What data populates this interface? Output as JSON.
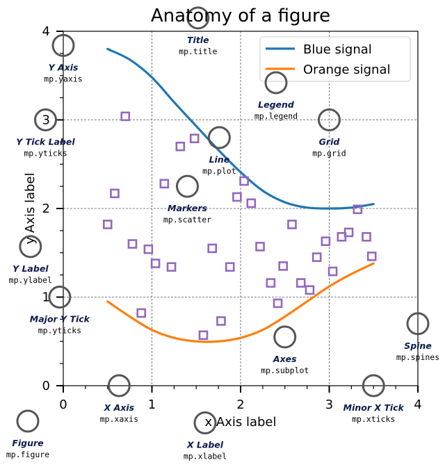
{
  "chart_data": {
    "type": "line",
    "title": "Anatomy of a figure",
    "xlabel": "x Axis label",
    "ylabel": "y Axis label",
    "xlim": [
      0,
      4
    ],
    "ylim": [
      0,
      4
    ],
    "x_major_ticks": [
      0,
      1,
      2,
      3,
      4
    ],
    "y_major_ticks": [
      0,
      1,
      2,
      3,
      4
    ],
    "x_minor_step": 0.25,
    "y_minor_step": 0.25,
    "grid": true,
    "legend_position": "top-right",
    "series": [
      {
        "name": "Blue signal",
        "type": "line",
        "color": "#1f77b4",
        "x": [
          0.5,
          0.75,
          1.0,
          1.25,
          1.5,
          1.75,
          2.0,
          2.25,
          2.5,
          2.75,
          3.0,
          3.25,
          3.5
        ],
        "y": [
          3.8,
          3.68,
          3.48,
          3.2,
          2.93,
          2.66,
          2.41,
          2.2,
          2.07,
          2.01,
          2.0,
          2.01,
          2.05
        ]
      },
      {
        "name": "Orange signal",
        "type": "line",
        "color": "#ff7f0e",
        "x": [
          0.5,
          0.75,
          1.0,
          1.25,
          1.5,
          1.75,
          2.0,
          2.25,
          2.5,
          2.75,
          3.0,
          3.25,
          3.5
        ],
        "y": [
          0.95,
          0.78,
          0.63,
          0.54,
          0.5,
          0.5,
          0.54,
          0.63,
          0.78,
          0.95,
          1.12,
          1.26,
          1.38
        ]
      },
      {
        "name": "markers",
        "type": "scatter",
        "color": "#9467bd",
        "points": [
          [
            0.7,
            3.04
          ],
          [
            0.5,
            1.82
          ],
          [
            0.58,
            2.17
          ],
          [
            0.78,
            1.6
          ],
          [
            0.88,
            0.82
          ],
          [
            0.96,
            1.54
          ],
          [
            1.04,
            1.38
          ],
          [
            1.14,
            2.28
          ],
          [
            1.22,
            1.34
          ],
          [
            1.32,
            2.7
          ],
          [
            1.48,
            2.79
          ],
          [
            1.58,
            0.57
          ],
          [
            1.68,
            1.55
          ],
          [
            1.78,
            0.73
          ],
          [
            1.88,
            1.34
          ],
          [
            1.96,
            2.13
          ],
          [
            2.04,
            2.31
          ],
          [
            2.12,
            2.06
          ],
          [
            2.22,
            1.57
          ],
          [
            2.34,
            1.16
          ],
          [
            2.42,
            0.93
          ],
          [
            2.48,
            1.35
          ],
          [
            2.58,
            1.82
          ],
          [
            2.68,
            1.16
          ],
          [
            2.78,
            1.08
          ],
          [
            2.86,
            1.45
          ],
          [
            2.96,
            1.63
          ],
          [
            3.04,
            1.29
          ],
          [
            3.14,
            1.68
          ],
          [
            3.22,
            1.73
          ],
          [
            3.32,
            1.99
          ],
          [
            3.42,
            1.68
          ],
          [
            3.48,
            1.46
          ]
        ]
      }
    ],
    "annotations": [
      {
        "label": "Title",
        "code": "mp.title",
        "x": 1.52,
        "y": 4.15
      },
      {
        "label": "Legend",
        "code": "mp.legend",
        "x": 2.4,
        "y": 3.42
      },
      {
        "label": "Y Axis",
        "code": "mp.yaxis",
        "x": 0.0,
        "y": 3.84
      },
      {
        "label": "Y Tick Label",
        "code": "mp.yticks",
        "x": -0.2,
        "y": 3.0
      },
      {
        "label": "Grid",
        "code": "mp.grid",
        "x": 3.0,
        "y": 3.0
      },
      {
        "label": "Line",
        "code": "mp.plot",
        "x": 1.76,
        "y": 2.8
      },
      {
        "label": "Markers",
        "code": "mp.scatter",
        "x": 1.4,
        "y": 2.25
      },
      {
        "label": "Y Label",
        "code": "mp.ylabel",
        "x": -0.37,
        "y": 1.57
      },
      {
        "label": "Major Y Tick",
        "code": "mp.yticks",
        "x": -0.04,
        "y": 1.0
      },
      {
        "label": "Axes",
        "code": "mp.subplot",
        "x": 2.5,
        "y": 0.55
      },
      {
        "label": "Spine",
        "code": "mp.spines",
        "x": 4.0,
        "y": 0.7
      },
      {
        "label": "X Axis",
        "code": "mp.xaxis",
        "x": 0.63,
        "y": 0.0
      },
      {
        "label": "Minor X Tick",
        "code": "mp.xticks",
        "x": 3.5,
        "y": 0.0
      },
      {
        "label": "Figure",
        "code": "mp.figure",
        "x": -0.4,
        "y": -0.4
      },
      {
        "label": "X Label",
        "code": "mp.xlabel",
        "x": 1.6,
        "y": -0.42
      }
    ]
  }
}
